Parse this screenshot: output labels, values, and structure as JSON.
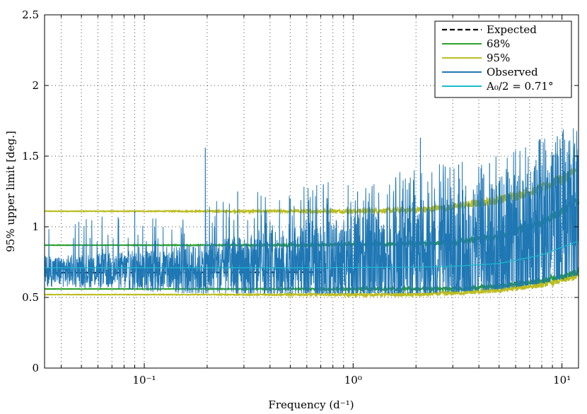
{
  "chart_data": {
    "type": "line",
    "title": "",
    "xlabel": "Frequency (d⁻¹)",
    "ylabel": "95% upper limit [deg.]",
    "xscale": "log",
    "xlim": [
      0.0333,
      12.0
    ],
    "ylim": [
      0,
      2.5
    ],
    "grid": true,
    "legend_position": "top-right",
    "x_ticks": [
      {
        "value": 0.1,
        "label": "10⁻¹"
      },
      {
        "value": 1,
        "label": "10⁰"
      },
      {
        "value": 10,
        "label": "10¹"
      }
    ],
    "y_ticks": [
      {
        "value": 0,
        "label": "0"
      },
      {
        "value": 0.5,
        "label": "0.5"
      },
      {
        "value": 1,
        "label": "1"
      },
      {
        "value": 1.5,
        "label": "1.5"
      },
      {
        "value": 2,
        "label": "2"
      },
      {
        "value": 2.5,
        "label": "2.5"
      }
    ],
    "series": [
      {
        "name": "Expected",
        "color": "#000000",
        "style": "dashed",
        "points": [
          [
            0.0333,
            0.675
          ],
          [
            0.1,
            0.676
          ],
          [
            0.5,
            0.678
          ],
          [
            1,
            0.68
          ],
          [
            2,
            0.68
          ],
          [
            3,
            0.69
          ],
          [
            5,
            0.72
          ],
          [
            8,
            0.78
          ],
          [
            12,
            0.86
          ]
        ]
      },
      {
        "name": "68%",
        "color": "#2ca02c",
        "style": "solid",
        "band": true,
        "upper": [
          [
            0.0333,
            0.87
          ],
          [
            0.1,
            0.87
          ],
          [
            0.5,
            0.87
          ],
          [
            1,
            0.875
          ],
          [
            2,
            0.88
          ],
          [
            3,
            0.89
          ],
          [
            5,
            0.93
          ],
          [
            8,
            1.03
          ],
          [
            12,
            1.18
          ]
        ],
        "lower": [
          [
            0.0333,
            0.56
          ],
          [
            0.1,
            0.56
          ],
          [
            0.5,
            0.56
          ],
          [
            1,
            0.56
          ],
          [
            2,
            0.56
          ],
          [
            3,
            0.56
          ],
          [
            5,
            0.58
          ],
          [
            8,
            0.62
          ],
          [
            12,
            0.68
          ]
        ]
      },
      {
        "name": "95%",
        "color": "#bcbd22",
        "style": "solid",
        "band": true,
        "upper": [
          [
            0.0333,
            1.11
          ],
          [
            0.1,
            1.11
          ],
          [
            0.5,
            1.11
          ],
          [
            1,
            1.11
          ],
          [
            2,
            1.12
          ],
          [
            3,
            1.14
          ],
          [
            5,
            1.19
          ],
          [
            8,
            1.27
          ],
          [
            12,
            1.4
          ]
        ],
        "lower": [
          [
            0.0333,
            0.52
          ],
          [
            0.1,
            0.52
          ],
          [
            0.5,
            0.52
          ],
          [
            1,
            0.52
          ],
          [
            2,
            0.52
          ],
          [
            3,
            0.53
          ],
          [
            5,
            0.55
          ],
          [
            8,
            0.59
          ],
          [
            12,
            0.65
          ]
        ]
      },
      {
        "name": "Observed",
        "color": "#1f77b4",
        "style": "solid",
        "noisy": true,
        "spikes": [
          [
            0.055,
            0.92
          ],
          [
            0.09,
            1.11
          ],
          [
            0.196,
            1.56
          ],
          [
            0.28,
            1.25
          ],
          [
            0.5,
            1.2
          ],
          [
            0.72,
            1.3
          ],
          [
            1.05,
            1.25
          ],
          [
            2.1,
            1.63
          ],
          [
            3.2,
            1.44
          ],
          [
            4.5,
            1.45
          ],
          [
            7.8,
            1.62
          ],
          [
            9.5,
            1.64
          ],
          [
            11.5,
            1.59
          ]
        ]
      },
      {
        "name": "A₀/2 = 0.71°",
        "color": "#17becf",
        "style": "solid",
        "points": [
          [
            0.0333,
            0.71
          ],
          [
            0.5,
            0.71
          ],
          [
            1,
            0.712
          ],
          [
            2,
            0.714
          ],
          [
            3,
            0.72
          ],
          [
            5,
            0.74
          ],
          [
            8,
            0.8
          ],
          [
            12,
            0.9
          ]
        ]
      }
    ],
    "legend": [
      "Expected",
      "68%",
      "95%",
      "Observed",
      "A₀/2 = 0.71°"
    ]
  }
}
